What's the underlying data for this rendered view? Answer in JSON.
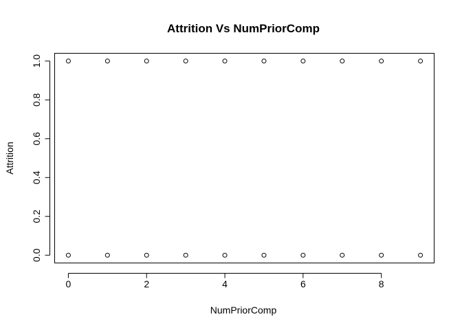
{
  "chart_data": {
    "type": "scatter",
    "title": "Attrition Vs NumPriorComp",
    "xlabel": "NumPriorComp",
    "ylabel": "Attrition",
    "xlim": [
      -0.35,
      9.35
    ],
    "ylim": [
      -0.04,
      1.04
    ],
    "x_ticks": [
      0,
      2,
      4,
      6,
      8
    ],
    "x_tick_labels": [
      "0",
      "2",
      "4",
      "6",
      "8"
    ],
    "y_ticks": [
      0.0,
      0.2,
      0.4,
      0.6,
      0.8,
      1.0
    ],
    "y_tick_labels": [
      "0.0",
      "0.2",
      "0.4",
      "0.6",
      "0.8",
      "1.0"
    ],
    "grid": false,
    "legend": "none",
    "point_style": "open-circle",
    "color": "#000000",
    "series": [
      {
        "x": [
          0,
          1,
          2,
          3,
          4,
          5,
          6,
          7,
          8,
          9,
          0,
          1,
          2,
          3,
          4,
          5,
          6,
          7,
          8,
          9
        ],
        "y": [
          1,
          1,
          1,
          1,
          1,
          1,
          1,
          1,
          1,
          1,
          0,
          0,
          0,
          0,
          0,
          0,
          0,
          0,
          0,
          0
        ]
      }
    ]
  }
}
